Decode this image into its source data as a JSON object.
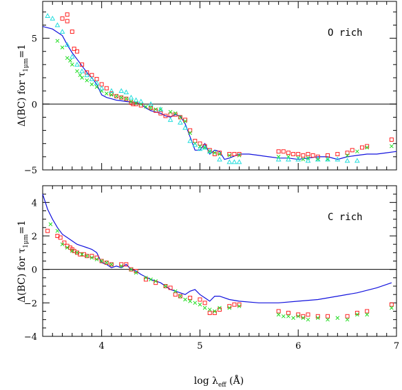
{
  "chart_data": [
    {
      "type": "scatter",
      "panel": "top",
      "annotation": "O rich",
      "ylabel": "Δ(BC)",
      "ylabel_for": "for",
      "ylabel_tau": "τ",
      "ylabel_tau_sub": "1μm",
      "ylabel_eq": "=1",
      "xlim": [
        3.4,
        7.0
      ],
      "ylim": [
        -5,
        7.8
      ],
      "yticks": [
        -5,
        0,
        5
      ],
      "ytick_labels": [
        "−5",
        "0",
        "5"
      ],
      "grid": false,
      "colors": {
        "squares": "#ff2020",
        "crosses": "#22dd22",
        "triangles": "#22dddd",
        "model": "#1010dd"
      },
      "zero_line": 0,
      "model_curve": {
        "x": [
          3.4,
          3.5,
          3.6,
          3.65,
          3.7,
          3.75,
          3.8,
          3.85,
          3.9,
          3.95,
          4.0,
          4.05,
          4.1,
          4.15,
          4.2,
          4.25,
          4.3,
          4.35,
          4.4,
          4.45,
          4.5,
          4.55,
          4.6,
          4.65,
          4.7,
          4.75,
          4.8,
          4.85,
          4.9,
          4.95,
          5.0,
          5.05,
          5.1,
          5.15,
          5.2,
          5.25,
          5.3,
          5.4,
          5.5,
          5.6,
          5.7,
          5.8,
          5.9,
          6.0,
          6.1,
          6.2,
          6.3,
          6.4,
          6.5,
          6.6,
          6.7,
          6.8,
          6.9,
          7.0
        ],
        "y": [
          5.9,
          5.7,
          5.2,
          4.5,
          3.9,
          3.4,
          2.9,
          2.4,
          2.0,
          1.5,
          0.7,
          0.5,
          0.4,
          0.3,
          0.25,
          0.2,
          0.15,
          0.1,
          0.0,
          -0.3,
          -0.5,
          -0.6,
          -0.7,
          -0.9,
          -1.0,
          -0.8,
          -0.9,
          -1.5,
          -2.5,
          -3.5,
          -3.5,
          -3.0,
          -3.8,
          -3.5,
          -3.6,
          -4.2,
          -4.1,
          -3.8,
          -3.8,
          -3.9,
          -4.0,
          -4.1,
          -4.1,
          -4.2,
          -4.1,
          -4.0,
          -4.0,
          -4.2,
          -4.0,
          -3.9,
          -3.8,
          -3.8,
          -3.7,
          -3.6
        ]
      },
      "squares": {
        "x": [
          3.6,
          3.65,
          3.65,
          3.7,
          3.72,
          3.75,
          3.8,
          3.85,
          3.9,
          3.95,
          4.0,
          4.05,
          4.1,
          4.15,
          4.2,
          4.25,
          4.3,
          4.32,
          4.35,
          4.4,
          4.5,
          4.55,
          4.6,
          4.65,
          4.7,
          4.75,
          4.8,
          4.85,
          4.9,
          4.95,
          5.0,
          5.05,
          5.1,
          5.15,
          5.2,
          5.3,
          5.35,
          5.4,
          5.8,
          5.85,
          5.9,
          5.95,
          6.0,
          6.05,
          6.1,
          6.15,
          6.2,
          6.3,
          6.4,
          6.5,
          6.55,
          6.65,
          6.7,
          6.95
        ],
        "y": [
          6.5,
          6.8,
          6.3,
          5.5,
          4.2,
          4.0,
          3.0,
          2.4,
          2.2,
          1.9,
          1.5,
          1.2,
          0.8,
          0.6,
          0.5,
          0.4,
          0.1,
          0.0,
          0.0,
          -0.1,
          -0.3,
          -0.5,
          -0.7,
          -0.9,
          -0.8,
          -0.8,
          -1.0,
          -1.2,
          -2.0,
          -2.8,
          -3.0,
          -3.2,
          -3.5,
          -3.8,
          -3.7,
          -3.8,
          -3.8,
          -3.8,
          -3.6,
          -3.6,
          -3.7,
          -3.8,
          -3.8,
          -3.9,
          -3.8,
          -3.9,
          -4.0,
          -3.9,
          -3.8,
          -3.7,
          -3.5,
          -3.3,
          -3.2,
          -2.7
        ]
      },
      "crosses": {
        "x": [
          3.55,
          3.6,
          3.65,
          3.68,
          3.7,
          3.75,
          3.78,
          3.8,
          3.85,
          3.9,
          3.95,
          4.0,
          4.05,
          4.1,
          4.15,
          4.2,
          4.25,
          4.3,
          4.35,
          4.4,
          4.45,
          4.5,
          4.55,
          4.6,
          4.7,
          4.75,
          4.8,
          4.85,
          4.9,
          4.95,
          5.0,
          5.05,
          5.1,
          5.15,
          5.2,
          5.3,
          5.4,
          5.8,
          5.9,
          6.0,
          6.05,
          6.1,
          6.2,
          6.3,
          6.5,
          6.6,
          6.7,
          6.95
        ],
        "y": [
          4.8,
          4.3,
          3.5,
          3.3,
          3.0,
          2.5,
          2.2,
          2.0,
          1.8,
          1.5,
          1.3,
          1.0,
          0.8,
          0.7,
          0.6,
          0.5,
          0.4,
          0.2,
          0.1,
          0.0,
          -0.2,
          -0.3,
          -0.4,
          -0.4,
          -0.6,
          -0.7,
          -1.0,
          -1.3,
          -2.2,
          -3.0,
          -3.2,
          -3.3,
          -3.6,
          -3.7,
          -3.8,
          -3.9,
          -3.9,
          -4.0,
          -4.0,
          -4.1,
          -4.2,
          -4.1,
          -4.2,
          -4.2,
          -3.9,
          -3.6,
          -3.3,
          -3.2
        ]
      },
      "triangles": {
        "x": [
          3.45,
          3.5,
          3.55,
          3.6,
          3.65,
          3.7,
          3.75,
          3.8,
          3.85,
          3.9,
          3.95,
          4.0,
          4.1,
          4.2,
          4.25,
          4.3,
          4.35,
          4.4,
          4.5,
          4.6,
          4.7,
          4.8,
          4.85,
          4.9,
          4.95,
          5.0,
          5.05,
          5.1,
          5.2,
          5.3,
          5.35,
          5.4,
          5.8,
          5.9,
          6.0,
          6.1,
          6.2,
          6.3,
          6.4,
          6.5,
          6.6
        ],
        "y": [
          6.7,
          6.5,
          6.0,
          5.5,
          4.5,
          3.6,
          3.0,
          2.5,
          2.2,
          1.9,
          1.6,
          1.2,
          1.0,
          1.0,
          0.9,
          0.5,
          0.3,
          0.2,
          0.0,
          -0.4,
          -1.2,
          -1.4,
          -1.8,
          -2.8,
          -3.1,
          -3.4,
          -3.3,
          -3.6,
          -4.2,
          -4.4,
          -4.4,
          -4.4,
          -4.2,
          -4.2,
          -4.2,
          -4.3,
          -4.2,
          -4.2,
          -4.2,
          -4.3,
          -4.3
        ]
      }
    },
    {
      "type": "scatter",
      "panel": "bottom",
      "annotation": "C rich",
      "ylabel": "Δ(BC)",
      "ylabel_for": "for",
      "ylabel_tau": "τ",
      "ylabel_tau_sub": "1μm",
      "ylabel_eq": "=1",
      "xlabel": "log",
      "xlabel_sym": "λ",
      "xlabel_sub": "eff",
      "xlabel_unit": "(Å)",
      "xlim": [
        3.4,
        7.0
      ],
      "ylim": [
        -4,
        5
      ],
      "xticks": [
        4,
        5,
        6,
        7
      ],
      "xtick_labels": [
        "4",
        "5",
        "6",
        "7"
      ],
      "yticks": [
        -4,
        -2,
        0,
        2,
        4
      ],
      "ytick_labels": [
        "−4",
        "−2",
        "0",
        "2",
        "4"
      ],
      "grid": false,
      "colors": {
        "squares": "#ff2020",
        "crosses": "#22dd22",
        "model": "#1010dd"
      },
      "zero_line": 0,
      "model_curve": {
        "x": [
          3.4,
          3.45,
          3.5,
          3.55,
          3.6,
          3.65,
          3.7,
          3.75,
          3.8,
          3.85,
          3.9,
          3.95,
          4.0,
          4.05,
          4.1,
          4.15,
          4.2,
          4.25,
          4.3,
          4.35,
          4.4,
          4.5,
          4.6,
          4.7,
          4.75,
          4.8,
          4.85,
          4.9,
          4.95,
          5.0,
          5.05,
          5.1,
          5.15,
          5.2,
          5.3,
          5.4,
          5.6,
          5.8,
          6.0,
          6.2,
          6.4,
          6.6,
          6.8,
          6.95
        ],
        "y": [
          4.5,
          3.6,
          3.0,
          2.5,
          2.1,
          1.9,
          1.7,
          1.5,
          1.4,
          1.3,
          1.2,
          1.0,
          0.4,
          0.3,
          0.1,
          0.2,
          0.1,
          0.3,
          0.0,
          -0.1,
          -0.3,
          -0.6,
          -0.8,
          -1.2,
          -1.3,
          -1.4,
          -1.5,
          -1.3,
          -1.2,
          -1.5,
          -1.7,
          -1.9,
          -1.6,
          -1.6,
          -1.8,
          -1.9,
          -2.0,
          -2.0,
          -1.9,
          -1.8,
          -1.6,
          -1.4,
          -1.1,
          -0.8
        ]
      },
      "squares": {
        "x": [
          3.45,
          3.55,
          3.58,
          3.62,
          3.65,
          3.68,
          3.7,
          3.72,
          3.75,
          3.78,
          3.82,
          3.85,
          3.9,
          3.95,
          4.0,
          4.05,
          4.1,
          4.2,
          4.25,
          4.3,
          4.35,
          4.45,
          4.55,
          4.65,
          4.7,
          4.75,
          4.8,
          4.9,
          5.0,
          5.05,
          5.1,
          5.15,
          5.2,
          5.3,
          5.35,
          5.4,
          5.8,
          5.9,
          6.0,
          6.05,
          6.1,
          6.2,
          6.3,
          6.5,
          6.6,
          6.7,
          6.95
        ],
        "y": [
          2.3,
          2.0,
          1.9,
          1.6,
          1.4,
          1.3,
          1.2,
          1.1,
          1.0,
          0.9,
          0.9,
          0.8,
          0.8,
          0.7,
          0.5,
          0.4,
          0.3,
          0.3,
          0.3,
          0.0,
          -0.1,
          -0.6,
          -0.8,
          -1.0,
          -1.1,
          -1.5,
          -1.6,
          -1.7,
          -1.8,
          -2.0,
          -2.6,
          -2.6,
          -2.4,
          -2.2,
          -2.1,
          -2.1,
          -2.5,
          -2.6,
          -2.7,
          -2.8,
          -2.7,
          -2.8,
          -2.8,
          -2.8,
          -2.6,
          -2.5,
          -2.1
        ]
      },
      "crosses": {
        "x": [
          3.48,
          3.55,
          3.6,
          3.65,
          3.7,
          3.75,
          3.8,
          3.85,
          3.9,
          3.95,
          4.0,
          4.05,
          4.1,
          4.2,
          4.3,
          4.35,
          4.45,
          4.5,
          4.55,
          4.65,
          4.75,
          4.8,
          4.85,
          4.9,
          4.95,
          5.0,
          5.05,
          5.1,
          5.15,
          5.2,
          5.3,
          5.4,
          5.8,
          5.85,
          5.9,
          5.95,
          6.0,
          6.05,
          6.1,
          6.2,
          6.3,
          6.4,
          6.5,
          6.6,
          6.7,
          6.95
        ],
        "y": [
          2.7,
          2.3,
          1.5,
          1.3,
          1.1,
          1.0,
          0.9,
          0.8,
          0.7,
          0.6,
          0.5,
          0.4,
          0.3,
          0.2,
          0.0,
          -0.2,
          -0.5,
          -0.6,
          -0.7,
          -1.0,
          -1.3,
          -1.6,
          -1.8,
          -1.9,
          -2.0,
          -2.1,
          -2.3,
          -2.4,
          -2.5,
          -2.3,
          -2.3,
          -2.2,
          -2.7,
          -2.8,
          -2.8,
          -2.9,
          -2.8,
          -2.9,
          -3.0,
          -2.9,
          -3.0,
          -2.9,
          -3.0,
          -2.7,
          -2.7,
          -2.3
        ]
      }
    }
  ]
}
